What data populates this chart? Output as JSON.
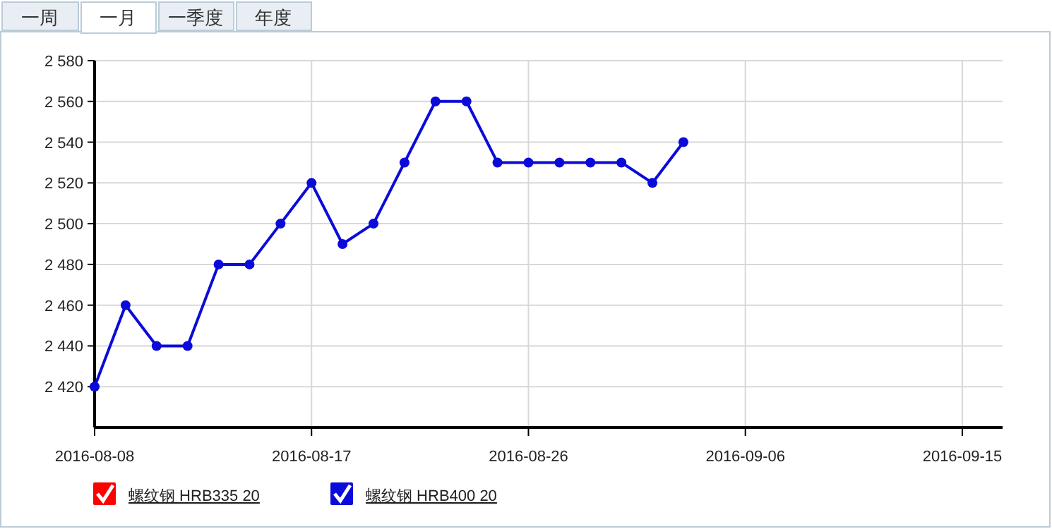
{
  "chart_data": {
    "type": "line",
    "annotations": [
      "一周",
      "一月",
      "一季度",
      "年度"
    ],
    "categories": [
      "2016-08-08",
      null,
      null,
      null,
      null,
      null,
      null,
      "2016-08-17",
      null,
      null,
      null,
      null,
      null,
      null,
      "2016-08-26",
      null,
      null,
      null,
      null,
      null,
      null,
      "2016-09-06",
      null,
      null,
      null,
      null,
      null,
      null,
      "2016-09-15"
    ],
    "series": [
      {
        "name": "螺纹钢 HRB335 20",
        "color": "#ff0000",
        "values": [
          null,
          null,
          null,
          null,
          null,
          null,
          null,
          null,
          null,
          null,
          null,
          null,
          null,
          null,
          null,
          null,
          null,
          null,
          null,
          null,
          null,
          null,
          null,
          null,
          null,
          null,
          null,
          null,
          null
        ]
      },
      {
        "name": "螺纹钢 HRB400 20",
        "color": "#0b0bd9",
        "values": [
          2420,
          2460,
          2440,
          2440,
          2480,
          2480,
          2500,
          2520,
          2490,
          2500,
          2530,
          2560,
          2560,
          2530,
          2530,
          2530,
          2530,
          2530,
          2520,
          2540,
          null,
          null,
          null,
          null,
          null,
          null,
          null,
          null,
          null
        ]
      }
    ],
    "ylim": [
      2400,
      2580
    ],
    "yticks": [
      {
        "value": 2400,
        "label": null
      },
      {
        "value": 2420,
        "label": "2 420"
      },
      {
        "value": 2440,
        "label": "2 440"
      },
      {
        "value": 2460,
        "label": "2 460"
      },
      {
        "value": 2480,
        "label": "2 480"
      },
      {
        "value": 2500,
        "label": "2 500"
      },
      {
        "value": 2520,
        "label": "2 520"
      },
      {
        "value": 2540,
        "label": "2 540"
      },
      {
        "value": 2560,
        "label": "2 560"
      },
      {
        "value": 2580,
        "label": "2 580"
      }
    ],
    "grid": true,
    "legend": "bottom left",
    "marker": "circle",
    "line_style": "solid"
  }
}
